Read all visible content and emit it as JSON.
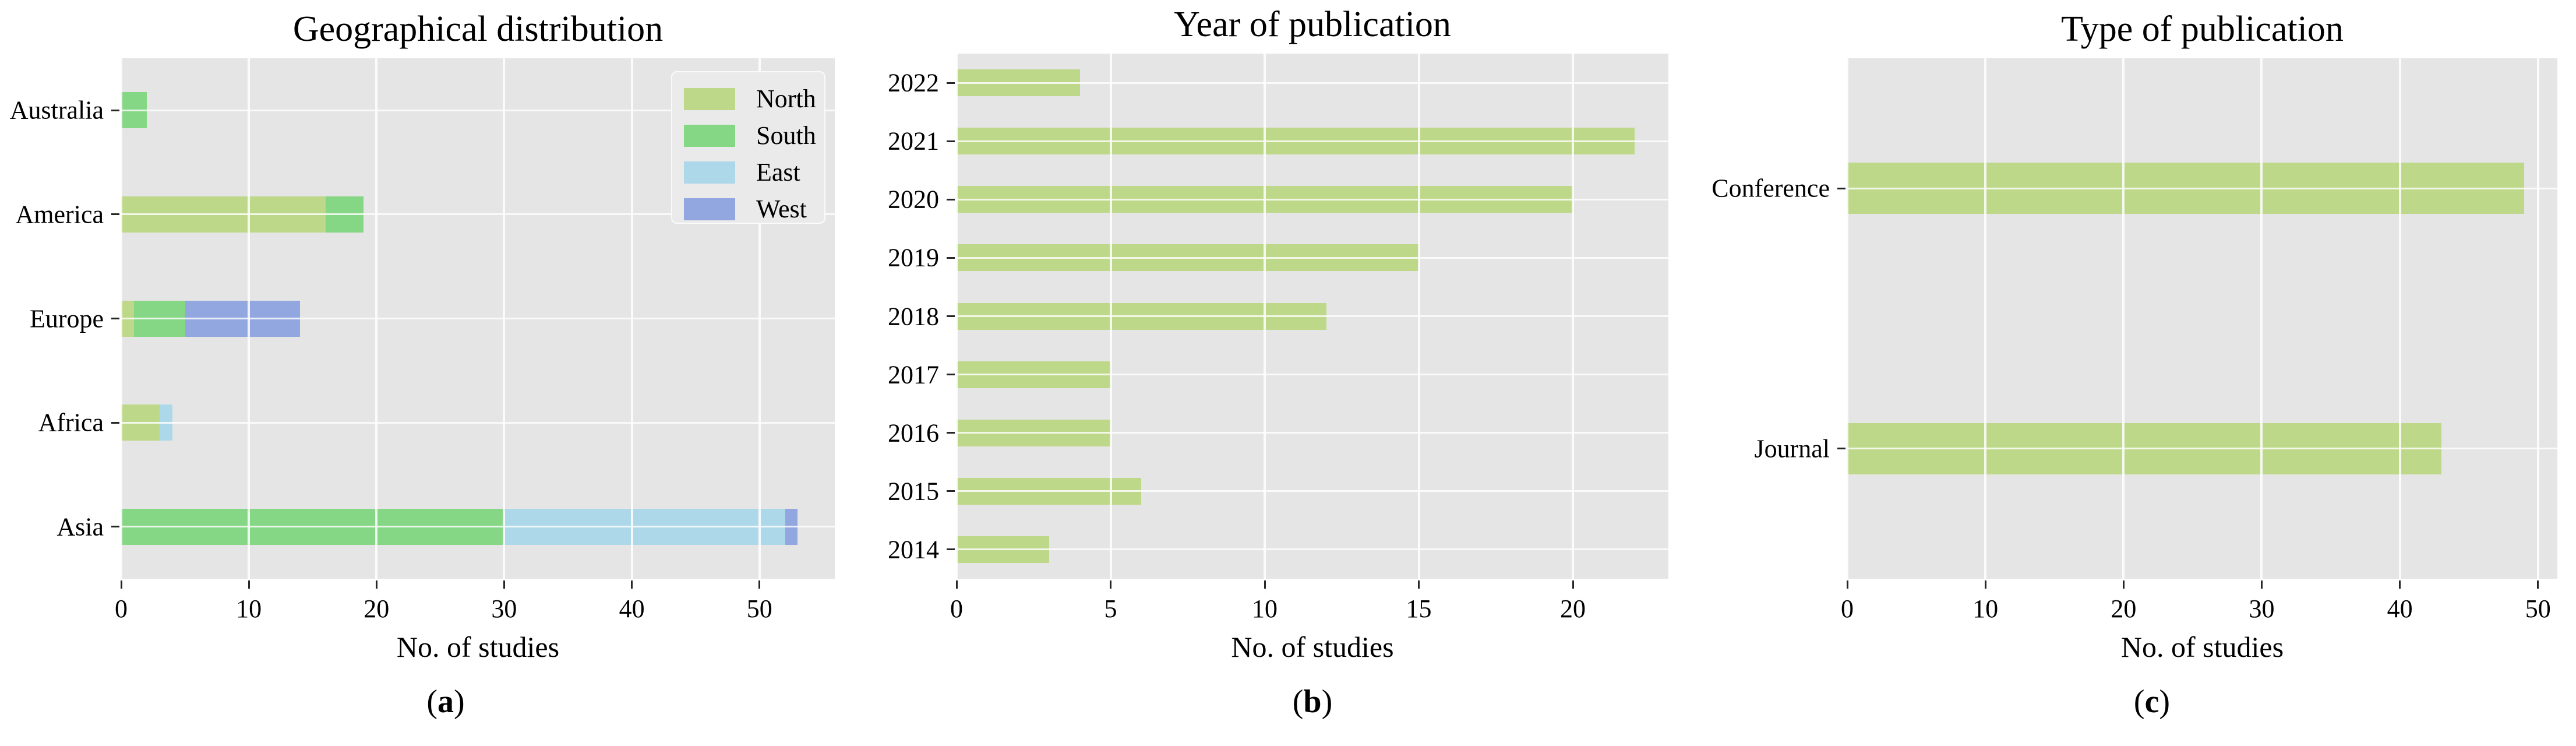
{
  "colors": {
    "north": "#bed889",
    "south": "#85d685",
    "east": "#add8e9",
    "west": "#92a7df",
    "panel_bg": "#e5e5e5",
    "gridline": "#ffffff",
    "text": "#000000"
  },
  "chart_data": [
    {
      "type": "bar",
      "orientation": "horizontal",
      "stacked": true,
      "title": "Geographical distribution",
      "xlabel": "No. of studies",
      "caption_letter": "a",
      "categories": [
        "Australia",
        "America",
        "Europe",
        "Africa",
        "Asia"
      ],
      "series": [
        {
          "name": "North",
          "color_key": "north",
          "values": [
            0,
            16,
            1,
            3,
            0
          ]
        },
        {
          "name": "South",
          "color_key": "south",
          "values": [
            2,
            3,
            4,
            0,
            30
          ]
        },
        {
          "name": "East",
          "color_key": "east",
          "values": [
            0,
            0,
            0,
            1,
            22
          ]
        },
        {
          "name": "West",
          "color_key": "west",
          "values": [
            0,
            0,
            9,
            0,
            1
          ]
        }
      ],
      "totals": [
        2,
        19,
        14,
        4,
        53
      ],
      "xticks": [
        0,
        10,
        20,
        30,
        40,
        50
      ],
      "xlim": [
        0,
        55.9
      ],
      "grid": true,
      "legend": {
        "position": "upper right",
        "entries": [
          "North",
          "South",
          "East",
          "West"
        ]
      }
    },
    {
      "type": "bar",
      "orientation": "horizontal",
      "stacked": false,
      "title": "Year of publication",
      "xlabel": "No. of studies",
      "caption_letter": "b",
      "categories": [
        "2022",
        "2021",
        "2020",
        "2019",
        "2018",
        "2017",
        "2016",
        "2015",
        "2014"
      ],
      "series": [
        {
          "name": "Studies",
          "color_key": "north",
          "values": [
            4,
            22,
            20,
            15,
            12,
            5,
            5,
            6,
            3
          ]
        }
      ],
      "xticks": [
        0,
        5,
        10,
        15,
        20
      ],
      "xlim": [
        0,
        23.1
      ],
      "grid": true,
      "legend": null
    },
    {
      "type": "bar",
      "orientation": "horizontal",
      "stacked": false,
      "title": "Type of publication",
      "xlabel": "No. of studies",
      "caption_letter": "c",
      "categories": [
        "Conference",
        "Journal"
      ],
      "series": [
        {
          "name": "Studies",
          "color_key": "north",
          "values": [
            49,
            43
          ]
        }
      ],
      "xticks": [
        0,
        10,
        20,
        30,
        40,
        50
      ],
      "xlim": [
        0,
        51.4
      ],
      "grid": true,
      "legend": null
    }
  ]
}
